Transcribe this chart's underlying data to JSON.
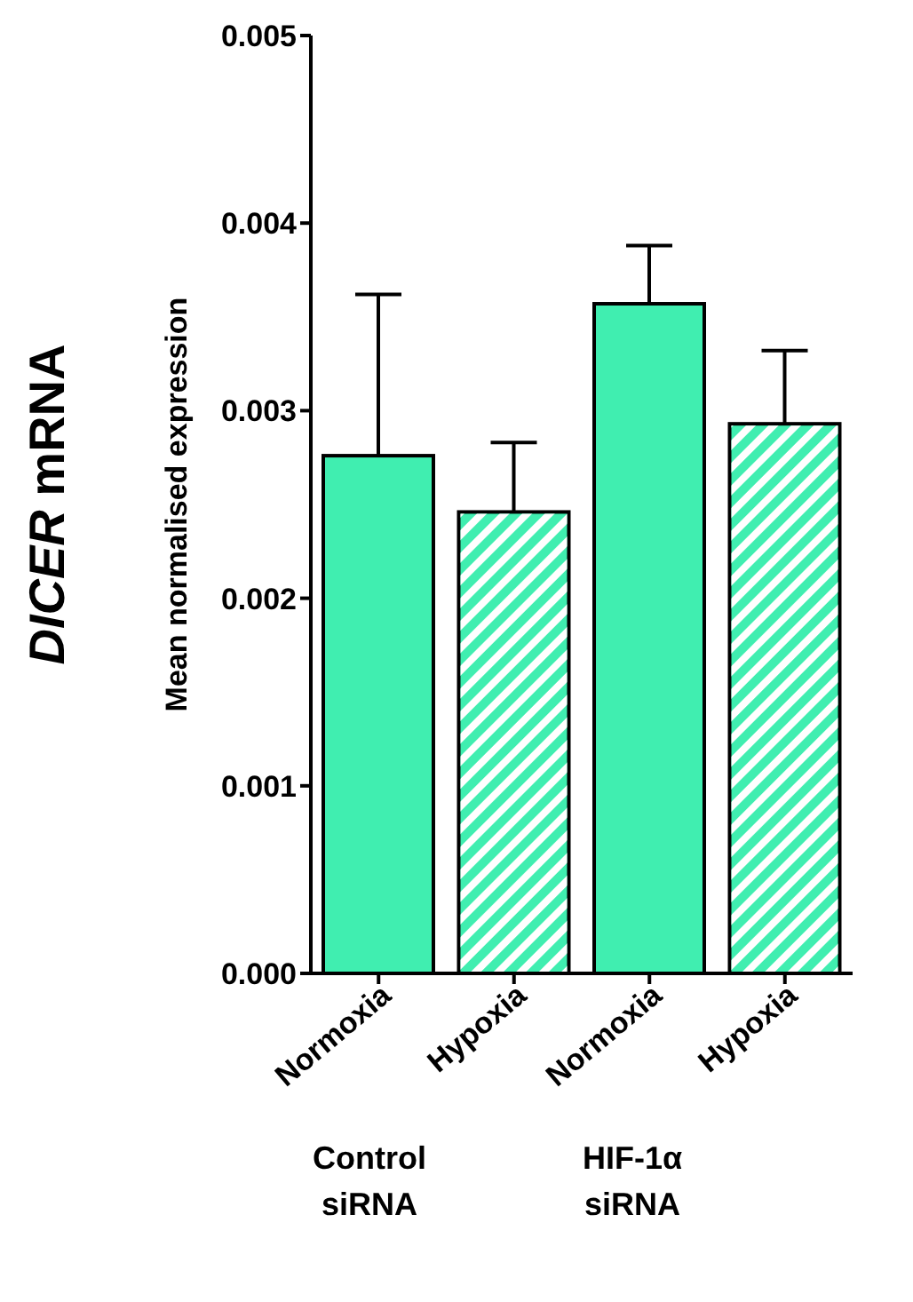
{
  "chart_data": {
    "type": "bar",
    "title": "DICER mRNA",
    "ylabel": "Mean normalised expression",
    "categories": [
      "Normoxia",
      "Hypoxia",
      "Normoxia",
      "Hypoxia"
    ],
    "values": [
      0.00276,
      0.00246,
      0.00357,
      0.00293
    ],
    "errors": [
      [
        0.00276,
        0.00362
      ],
      [
        0.00246,
        0.00283
      ],
      [
        0.00357,
        0.00388
      ],
      [
        0.00293,
        0.00332
      ]
    ],
    "colors": [
      "#40eeb0",
      "#40eeb0",
      "#40eeb0",
      "#40eeb0"
    ],
    "ylim": [
      0,
      0.005
    ],
    "yticks": [
      {
        "value": 0,
        "label": "0.000"
      },
      {
        "value": 0.001,
        "label": "0.001"
      },
      {
        "value": 0.002,
        "label": "0.002"
      },
      {
        "value": 0.003,
        "label": "0.003"
      },
      {
        "value": 0.004,
        "label": "0.004"
      },
      {
        "value": 0.005,
        "label": "0.005"
      }
    ],
    "grid": false,
    "annotations": [
      "Control\nsiRNA",
      "HIF-1α\nsiRNA"
    ]
  }
}
